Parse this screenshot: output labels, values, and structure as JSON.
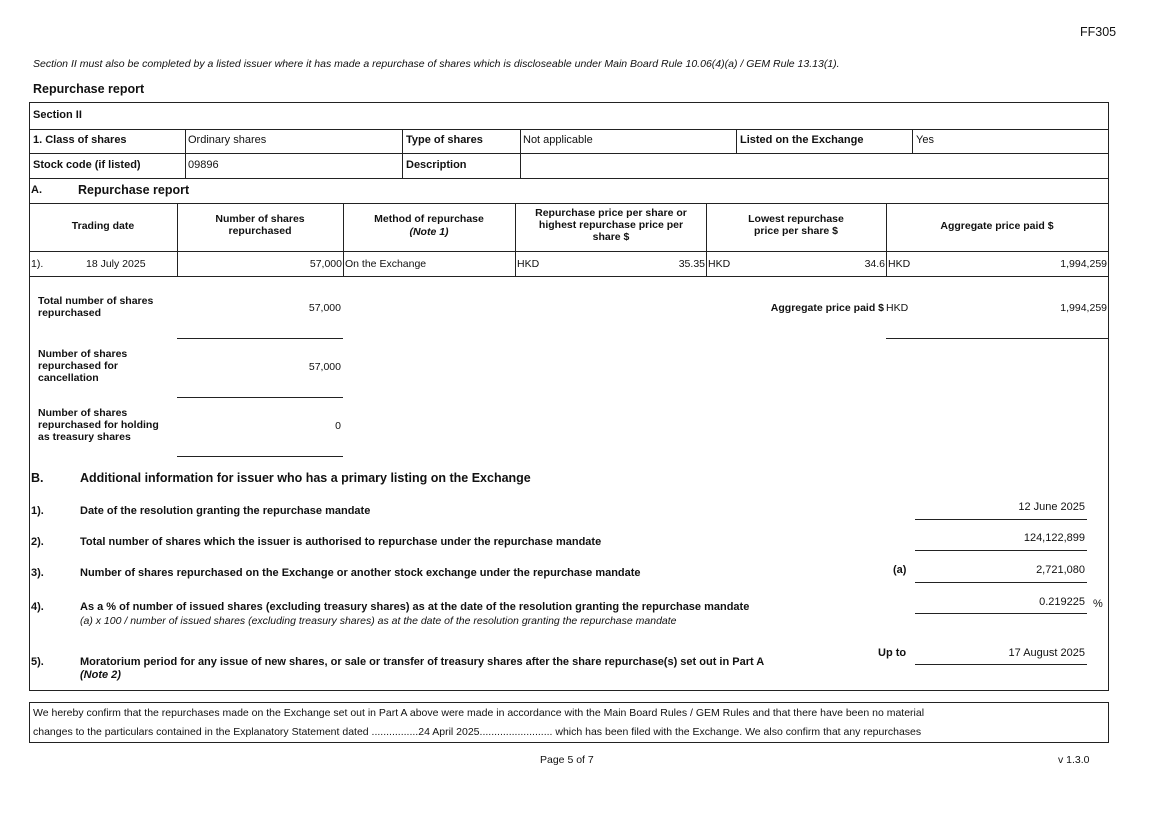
{
  "form_code": "FF305",
  "intro_note": "Section II must also be completed by a listed issuer where it has made a repurchase of shares which is discloseable under Main Board Rule 10.06(4)(a) / GEM Rule 13.13(1).",
  "report_title": "Repurchase report",
  "section_title": "Section II",
  "class_label": "1. Class of shares",
  "class_value": "Ordinary shares",
  "type_label": "Type of shares",
  "type_value": "Not applicable",
  "listed_label": "Listed on the Exchange",
  "listed_value": "Yes",
  "stock_label": "Stock code (if listed)",
  "stock_value": "09896",
  "desc_label": "Description",
  "desc_value": "",
  "partA": {
    "letter": "A.",
    "title": "Repurchase report",
    "headers": {
      "date": "Trading date",
      "number": "Number of shares repurchased",
      "method": "Method of repurchase",
      "method_note": "(Note 1)",
      "highest": "Repurchase price per share or highest repurchase price per share $",
      "lowest": "Lowest repurchase price per share $",
      "aggregate": "Aggregate price paid $"
    },
    "rows": [
      {
        "index": "1).",
        "date": "18 July 2025",
        "number": "57,000",
        "method": "On the Exchange",
        "high_cur": "HKD",
        "high": "35.35",
        "low_cur": "HKD",
        "low": "34.6",
        "agg_cur": "HKD",
        "agg": "1,994,259"
      }
    ],
    "total_label": "Total number of shares repurchased",
    "total_value": "57,000",
    "agg_total_label": "Aggregate price paid $",
    "agg_total_cur": "HKD",
    "agg_total_value": "1,994,259",
    "cancel_label": "Number of shares repurchased for cancellation",
    "cancel_value": "57,000",
    "treasury_label": "Number of shares repurchased for holding as treasury shares",
    "treasury_value": "0"
  },
  "partB": {
    "letter": "B.",
    "title": "Additional information for issuer who has a primary listing on the Exchange",
    "items": [
      {
        "index": "1).",
        "text": "Date of the resolution granting the repurchase mandate",
        "value": "12 June 2025"
      },
      {
        "index": "2).",
        "text": "Total number of shares which the issuer is authorised to repurchase under the repurchase mandate",
        "value": "124,122,899"
      },
      {
        "index": "3).",
        "text": "Number of shares repurchased on the Exchange or another stock exchange under the repurchase mandate",
        "marker": "(a)",
        "value": "2,721,080"
      },
      {
        "index": "4).",
        "text": "As a % of number of issued shares (excluding treasury shares) as at the date of the resolution granting the repurchase mandate",
        "subtext": "(a) x 100 / number of issued shares (excluding treasury shares) as at the date of the resolution granting the repurchase mandate",
        "value": "0.219225",
        "unit": "%"
      },
      {
        "index": "5).",
        "text": "Moratorium period for any issue of new shares, or sale or transfer of treasury shares after the share repurchase(s) set out in Part A",
        "subtext": "(Note 2)",
        "marker": "Up to",
        "value": "17 August 2025"
      }
    ]
  },
  "confirm_line1": "We hereby confirm that the repurchases made on the Exchange set out in Part A above were made in accordance with the Main Board Rules / GEM Rules and that there have been no material",
  "confirm_line2": "changes to the particulars contained in the Explanatory Statement dated ................24 April 2025......................... which has been filed with the Exchange. We also confirm that any repurchases",
  "page_label": "Page 5 of 7",
  "version": "v 1.3.0"
}
